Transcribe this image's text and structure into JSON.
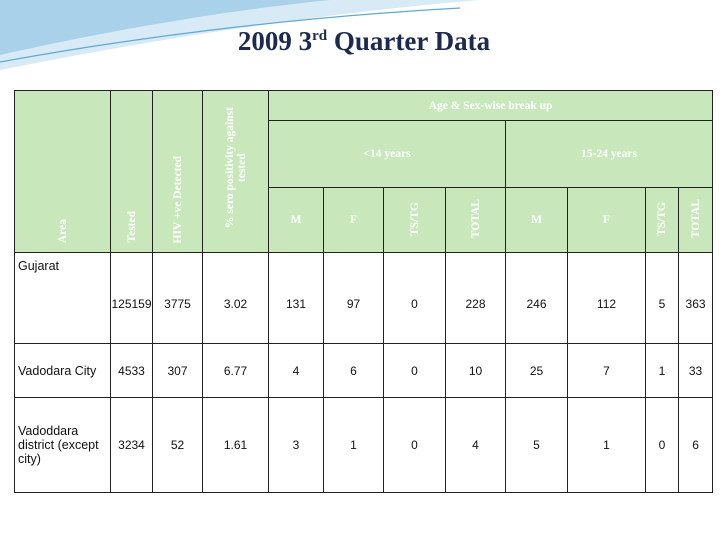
{
  "title": {
    "text": "2009 3",
    "superscript": "rd",
    "suffix": "Quarter Data"
  },
  "table": {
    "group_header": "Age & Sex-wise break up",
    "left_headers": [
      "Area",
      "Tested",
      "HIV +ve Detected",
      "% sero positivity against tested"
    ],
    "age_groups": [
      "<14 years",
      "15-24 years"
    ],
    "sub_headers": [
      "M",
      "F",
      "TS/TG",
      "TOTAL",
      "M",
      "F",
      "TS/TG",
      "TOTAL"
    ],
    "rows": [
      [
        "Gujarat",
        125159,
        3775,
        3.02,
        131,
        97,
        0,
        228,
        246,
        112,
        5,
        363
      ],
      [
        "Vadodara City",
        4533,
        307,
        6.77,
        4,
        6,
        0,
        10,
        25,
        7,
        1,
        33
      ],
      [
        "Vadoddara district (except city)",
        3234,
        52,
        1.61,
        3,
        1,
        0,
        4,
        5,
        1,
        0,
        6
      ]
    ]
  }
}
